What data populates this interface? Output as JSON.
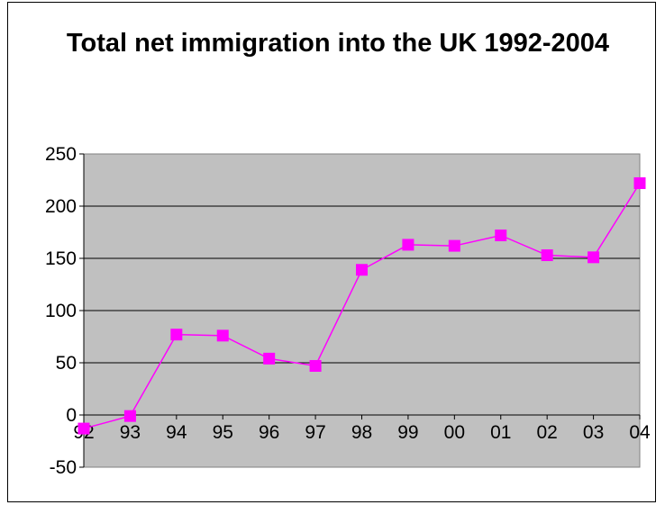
{
  "chart_data": {
    "type": "line",
    "title": "Total net immigration into the UK 1992-2004",
    "xlabel": "",
    "ylabel": "",
    "categories": [
      "92",
      "93",
      "94",
      "95",
      "96",
      "97",
      "98",
      "99",
      "00",
      "01",
      "02",
      "03",
      "04"
    ],
    "series": [
      {
        "values": [
          -13,
          -1,
          77,
          76,
          54,
          47,
          139,
          163,
          162,
          172,
          153,
          151,
          222
        ],
        "color": "#ff00ff",
        "marker": "square"
      }
    ],
    "ylim": [
      -50,
      250
    ],
    "yticks": [
      -50,
      0,
      50,
      100,
      150,
      200,
      250
    ],
    "grid": true,
    "plot_background": "#c0c0c0",
    "legend": "none"
  }
}
